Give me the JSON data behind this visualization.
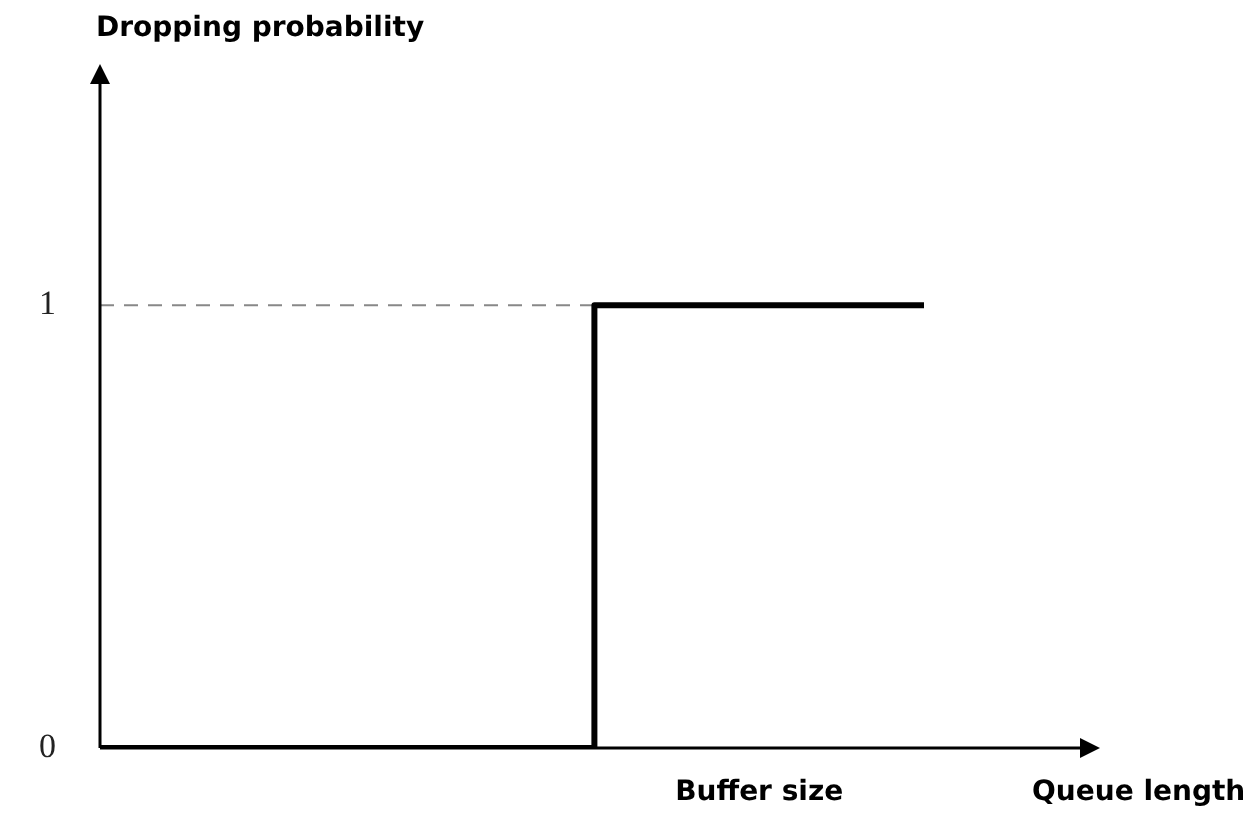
{
  "chart_data": {
    "type": "step",
    "xlabel": "Queue length",
    "ylabel": "Dropping probability",
    "categories": [
      null,
      null,
      null,
      null,
      "Buffer size",
      null
    ],
    "values": [
      0,
      0,
      0,
      0,
      1,
      1
    ],
    "color": "#000000",
    "line_style": "solid",
    "marker": "none",
    "ylim": [
      0,
      1.5
    ],
    "yticks": [
      0,
      1
    ],
    "ref_lines": [
      {
        "axis": "y",
        "value": 1,
        "color": "#888888",
        "line_style": "dashed"
      }
    ]
  }
}
